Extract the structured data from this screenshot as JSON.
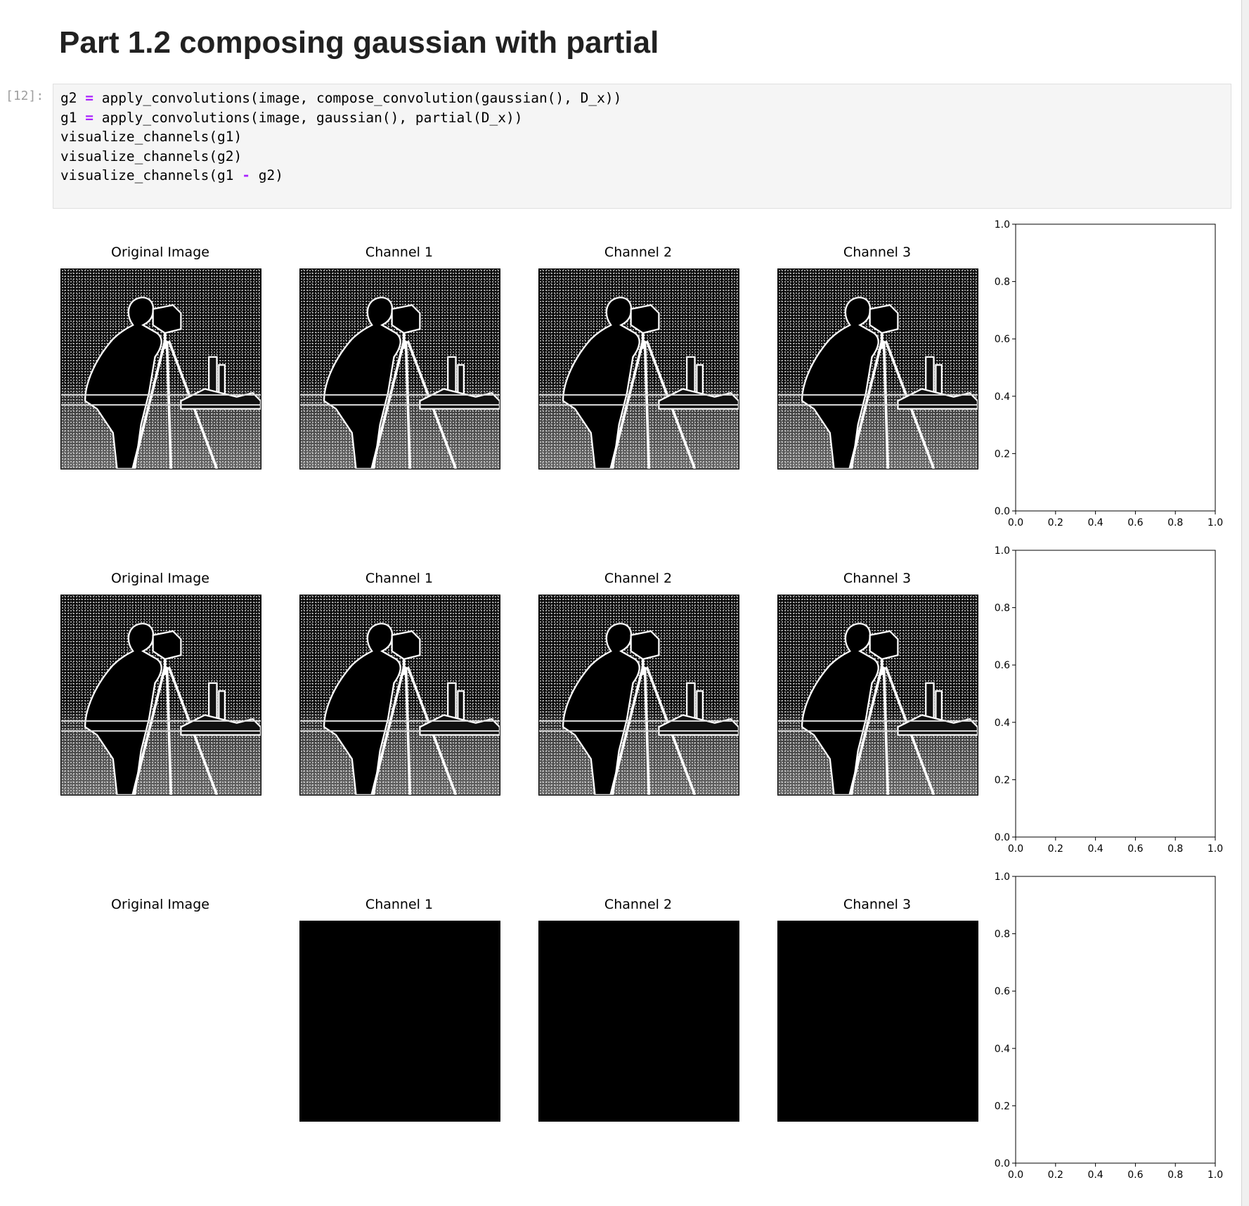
{
  "heading": "Part 1.2 composing gaussian with partial",
  "cell": {
    "prompt": "[12]:",
    "lines": [
      {
        "a": "g2 ",
        "op": "=",
        "b": " apply_convolutions(image, compose_convolution(gaussian(), D_x))"
      },
      {
        "a": "g1 ",
        "op": "=",
        "b": " apply_convolutions(image, gaussian(), partial(D_x))"
      },
      {
        "a": "visualize_channels(g1)",
        "op": "",
        "b": ""
      },
      {
        "a": "visualize_channels(g2)",
        "op": "",
        "b": ""
      },
      {
        "a": "visualize_channels(g1 ",
        "op": "-",
        "b": " g2)"
      }
    ]
  },
  "figures": [
    {
      "titles": [
        "Original Image",
        "Channel 1",
        "Channel 2",
        "Channel 3"
      ],
      "panels": [
        "edge-image",
        "edge-image",
        "edge-image",
        "edge-image"
      ]
    },
    {
      "titles": [
        "Original Image",
        "Channel 1",
        "Channel 2",
        "Channel 3"
      ],
      "panels": [
        "edge-image",
        "edge-image",
        "edge-image",
        "edge-image"
      ]
    },
    {
      "titles": [
        "Original Image",
        "Channel 1",
        "Channel 2",
        "Channel 3"
      ],
      "panels": [
        "blank",
        "black",
        "black",
        "black"
      ]
    }
  ],
  "chart_data": [
    {
      "type": "scatter",
      "title": "",
      "xlabel": "",
      "ylabel": "",
      "xlim": [
        0.0,
        1.0
      ],
      "ylim": [
        0.0,
        1.0
      ],
      "xticks": [
        "0.0",
        "0.2",
        "0.4",
        "0.6",
        "0.8",
        "1.0"
      ],
      "yticks": [
        "0.0",
        "0.2",
        "0.4",
        "0.6",
        "0.8",
        "1.0"
      ],
      "series": []
    },
    {
      "type": "scatter",
      "title": "",
      "xlabel": "",
      "ylabel": "",
      "xlim": [
        0.0,
        1.0
      ],
      "ylim": [
        0.0,
        1.0
      ],
      "xticks": [
        "0.0",
        "0.2",
        "0.4",
        "0.6",
        "0.8",
        "1.0"
      ],
      "yticks": [
        "0.0",
        "0.2",
        "0.4",
        "0.6",
        "0.8",
        "1.0"
      ],
      "series": []
    },
    {
      "type": "scatter",
      "title": "",
      "xlabel": "",
      "ylabel": "",
      "xlim": [
        0.0,
        1.0
      ],
      "ylim": [
        0.0,
        1.0
      ],
      "xticks": [
        "0.0",
        "0.2",
        "0.4",
        "0.6",
        "0.8",
        "1.0"
      ],
      "yticks": [
        "0.0",
        "0.2",
        "0.4",
        "0.6",
        "0.8",
        "1.0"
      ],
      "series": []
    }
  ]
}
